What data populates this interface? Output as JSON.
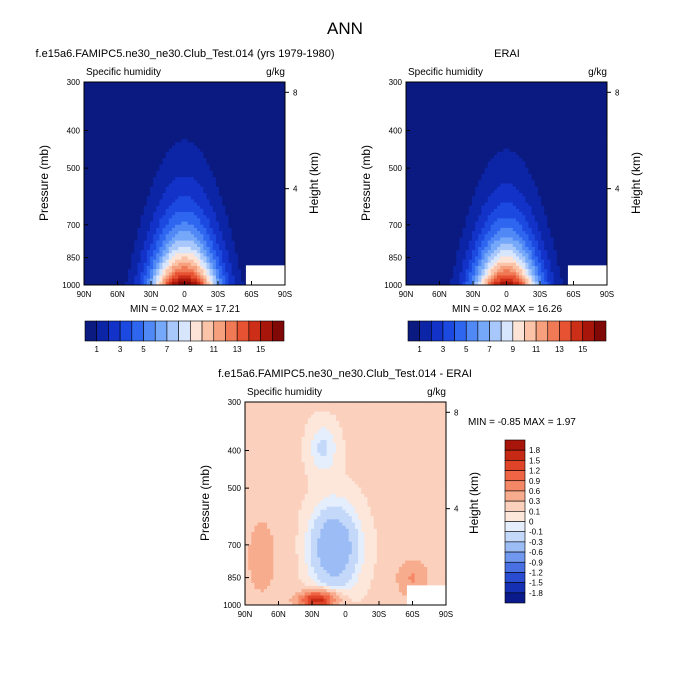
{
  "figure_title": "ANN",
  "chart_data": [
    {
      "type": "heatmap",
      "title": "f.e15a6.FAMIPC5.ne30_ne30.Club_Test.014 (yrs 1979-1980)",
      "variable": "Specific humidity",
      "units": "g/kg",
      "ylabel": "Pressure (mb)",
      "y2label": "Height (km)",
      "x_ticks": [
        "90N",
        "60N",
        "30N",
        "0",
        "30S",
        "60S",
        "90S"
      ],
      "y_ticks": [
        300,
        400,
        500,
        700,
        850,
        1000
      ],
      "y2_ticks": [
        8,
        4
      ],
      "ylim": [
        1000,
        300
      ],
      "y_scale": "log",
      "xlim": [
        90,
        -90
      ],
      "stats": "MIN =  0.02  MAX =  17.21",
      "colorbar_labels": [
        "1",
        "3",
        "5",
        "7",
        "9",
        "11",
        "13",
        "15"
      ],
      "colorbar_colors": [
        "#0a1a80",
        "#0c24a6",
        "#1232c8",
        "#1c4ae0",
        "#2e66f0",
        "#5088f6",
        "#76a8fa",
        "#a8c8fc",
        "#d8e6fd",
        "#fde4d6",
        "#fbc4a8",
        "#f7a07e",
        "#f07a56",
        "#e65232",
        "#cc2e18",
        "#a8150a",
        "#800806"
      ],
      "field": {
        "peak": 17.2,
        "min": 0.02,
        "center_lat": 0,
        "width": 31,
        "scale_height_km": 2.1
      },
      "grid": false
    },
    {
      "type": "heatmap",
      "title": "ERAI",
      "variable": "Specific humidity",
      "units": "g/kg",
      "ylabel": "Pressure (mb)",
      "y2label": "Height (km)",
      "x_ticks": [
        "90N",
        "60N",
        "30N",
        "0",
        "30S",
        "60S",
        "90S"
      ],
      "y_ticks": [
        300,
        400,
        500,
        700,
        850,
        1000
      ],
      "y2_ticks": [
        8,
        4
      ],
      "ylim": [
        1000,
        300
      ],
      "y_scale": "log",
      "xlim": [
        90,
        -90
      ],
      "stats": "MIN =  0.02  MAX =  16.26",
      "colorbar_labels": [
        "1",
        "3",
        "5",
        "7",
        "9",
        "11",
        "13",
        "15"
      ],
      "colorbar_colors": [
        "#0a1a80",
        "#0c24a6",
        "#1232c8",
        "#1c4ae0",
        "#2e66f0",
        "#5088f6",
        "#76a8fa",
        "#a8c8fc",
        "#d8e6fd",
        "#fde4d6",
        "#fbc4a8",
        "#f7a07e",
        "#f07a56",
        "#e65232",
        "#cc2e18",
        "#a8150a",
        "#800806"
      ],
      "field": {
        "peak": 16.3,
        "min": 0.02,
        "center_lat": 0,
        "width": 30,
        "scale_height_km": 2.0
      },
      "grid": false
    },
    {
      "type": "heatmap",
      "title": "f.e15a6.FAMIPC5.ne30_ne30.Club_Test.014 - ERAI",
      "variable": "Specific humidity",
      "units": "g/kg",
      "ylabel": "Pressure (mb)",
      "y2label": "Height (km)",
      "x_ticks": [
        "90N",
        "60N",
        "30N",
        "0",
        "30S",
        "60S",
        "90S"
      ],
      "y_ticks": [
        300,
        400,
        500,
        700,
        850,
        1000
      ],
      "y2_ticks": [
        8,
        4
      ],
      "ylim": [
        1000,
        300
      ],
      "y_scale": "log",
      "xlim": [
        90,
        -90
      ],
      "stats": "MIN = -0.85  MAX =  1.97",
      "colorbar_labels": [
        "1.8",
        "1.5",
        "1.2",
        "0.9",
        "0.6",
        "0.3",
        "0.1",
        "0",
        "-0.1",
        "-0.3",
        "-0.6",
        "-0.9",
        "-1.2",
        "-1.5",
        "-1.8"
      ],
      "colorbar_colors": [
        "#a8150a",
        "#c62a14",
        "#e04428",
        "#ee6444",
        "#f48866",
        "#f8ac8e",
        "#fbd0bc",
        "#fde6da",
        "#e4eefc",
        "#c4d8fa",
        "#9cbcf6",
        "#7098ee",
        "#4870e2",
        "#2a4cd0",
        "#1630b4",
        "#0a1a8a"
      ],
      "grid": false
    }
  ]
}
